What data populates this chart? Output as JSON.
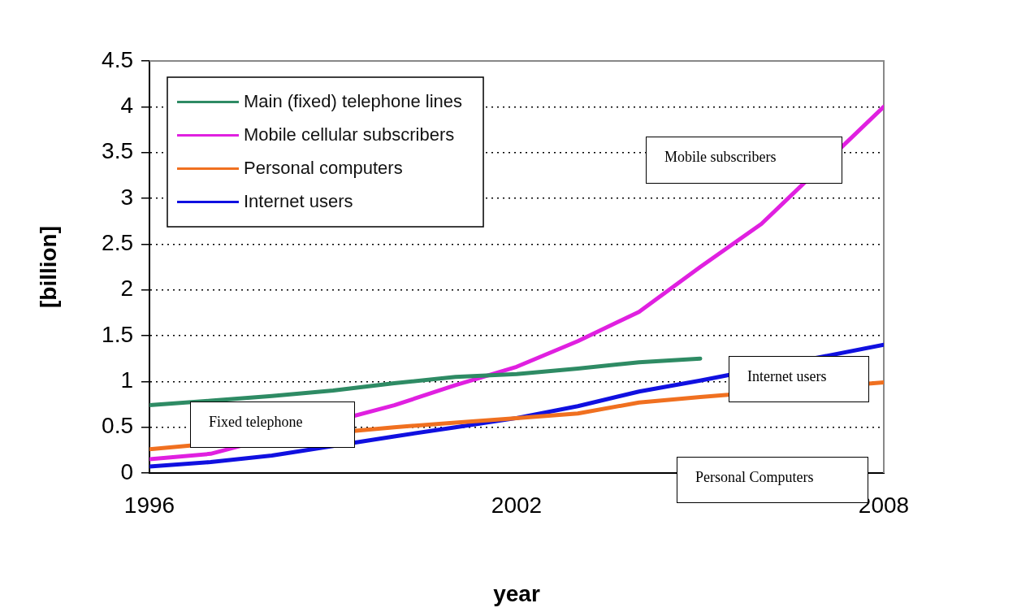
{
  "chart_data": {
    "type": "line",
    "xlabel": "year",
    "ylabel": "[billion]",
    "x": [
      1996,
      1997,
      1998,
      1999,
      2000,
      2001,
      2002,
      2003,
      2004,
      2005,
      2006,
      2007,
      2008
    ],
    "series": [
      {
        "name": "Main (fixed) telephone lines",
        "color": "#2e8b64",
        "values": [
          0.74,
          0.79,
          0.84,
          0.9,
          0.98,
          1.05,
          1.08,
          1.14,
          1.21,
          1.25,
          null,
          null,
          null
        ]
      },
      {
        "name": "Mobile cellular subscribers",
        "color": "#e020e0",
        "values": [
          0.15,
          0.21,
          null,
          null,
          0.74,
          0.96,
          1.16,
          1.44,
          1.76,
          2.25,
          2.72,
          null,
          4.0
        ]
      },
      {
        "name": "Personal computers",
        "color": "#f07020",
        "values": [
          0.26,
          null,
          null,
          null,
          0.5,
          0.55,
          0.6,
          0.65,
          0.77,
          0.83,
          null,
          null,
          0.99
        ]
      },
      {
        "name": "Internet users",
        "color": "#1010e0",
        "values": [
          0.07,
          0.12,
          0.19,
          null,
          0.4,
          0.5,
          0.6,
          0.73,
          0.89,
          1.01,
          null,
          null,
          1.4
        ]
      }
    ],
    "xlim": [
      1996,
      2008
    ],
    "xticks": [
      1996,
      2002,
      2008
    ],
    "ylim": [
      0,
      4.5
    ],
    "yticks": [
      0,
      0.5,
      1,
      1.5,
      2,
      2.5,
      3,
      3.5,
      4,
      4.5
    ],
    "grid": "y",
    "legend": "top left",
    "marker": "none",
    "line_style": "solid",
    "annotations": [
      "Mobile subscribers",
      "Internet users",
      "Fixed telephone",
      "Personal Computers"
    ]
  }
}
